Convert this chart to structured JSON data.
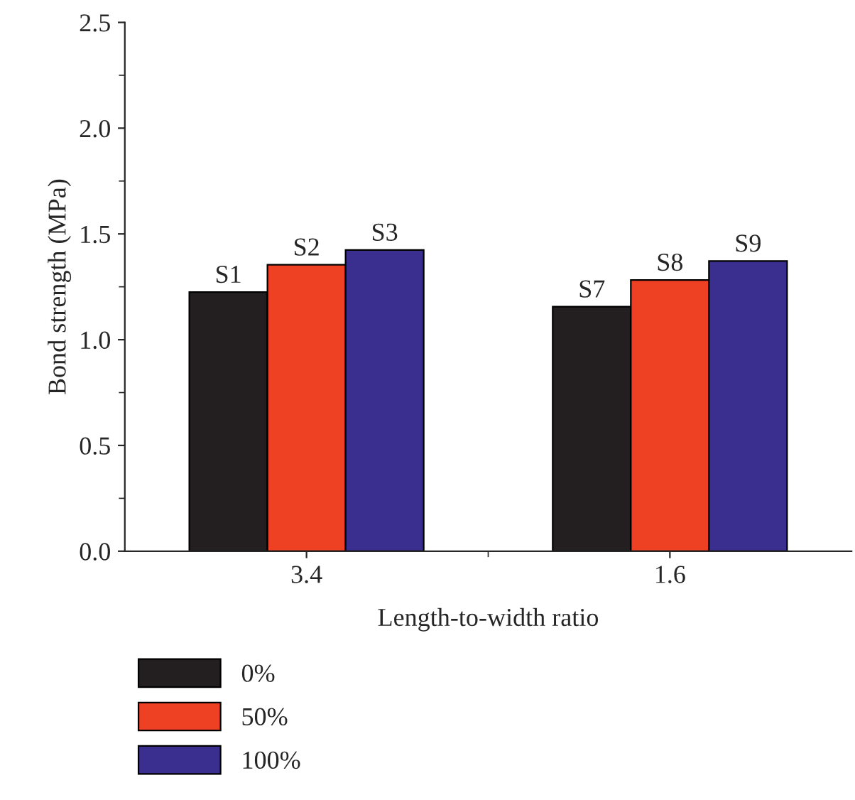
{
  "chart_data": {
    "type": "bar",
    "xlabel": "Length-to-width ratio",
    "ylabel": "Bond strength (MPa)",
    "categories": [
      "3.4",
      "1.6"
    ],
    "series": [
      {
        "name": "0%",
        "color": "#231f20",
        "values": [
          1.225,
          1.156
        ],
        "value_labels": [
          "S1",
          "S7"
        ]
      },
      {
        "name": "50%",
        "color": "#ee4023",
        "values": [
          1.354,
          1.282
        ],
        "value_labels": [
          "S2",
          "S8"
        ]
      },
      {
        "name": "100%",
        "color": "#3a2e8e",
        "values": [
          1.424,
          1.372
        ],
        "value_labels": [
          "S3",
          "S9"
        ]
      }
    ],
    "ylim": [
      0,
      2.5
    ],
    "yticks": [
      {
        "value": 0,
        "label": "0.0"
      },
      0.5,
      {
        "value": 1,
        "label": "1.0"
      },
      1.5,
      {
        "value": 2,
        "label": "2.0"
      },
      2.5
    ],
    "grid": false,
    "legend": "bottom left"
  }
}
